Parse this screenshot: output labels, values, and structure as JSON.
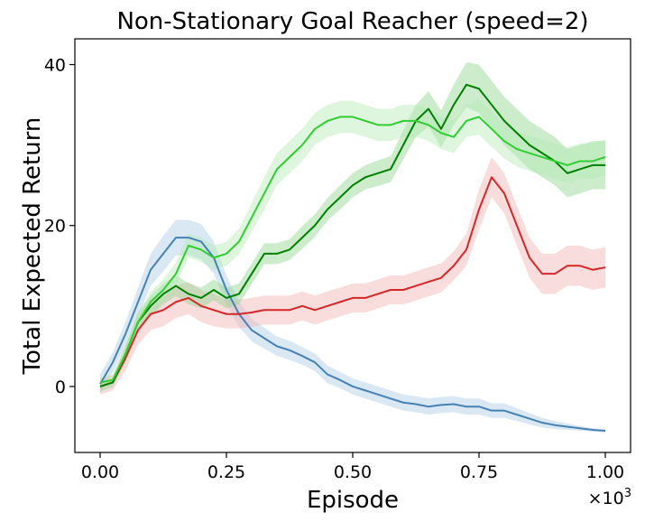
{
  "chart_data": {
    "type": "line",
    "title": "Non-Stationary Goal Reacher (speed=2)",
    "xlabel": "Episode",
    "ylabel": "Total Expected Return",
    "x_offset_label": "×10",
    "x_offset_exponent": "3",
    "xlim": [
      -0.05,
      1.05
    ],
    "ylim": [
      -8.2,
      43.2
    ],
    "xticks": [
      0.0,
      0.25,
      0.5,
      0.75,
      1.0
    ],
    "xtick_labels": [
      "0.00",
      "0.25",
      "0.50",
      "0.75",
      "1.00"
    ],
    "yticks": [
      0,
      20,
      40
    ],
    "ytick_labels": [
      "0",
      "20",
      "40"
    ],
    "grid": false,
    "legend": "none",
    "x": [
      0.0,
      0.025,
      0.05,
      0.075,
      0.1,
      0.125,
      0.15,
      0.175,
      0.2,
      0.225,
      0.25,
      0.275,
      0.3,
      0.325,
      0.35,
      0.375,
      0.4,
      0.425,
      0.45,
      0.475,
      0.5,
      0.525,
      0.55,
      0.575,
      0.6,
      0.625,
      0.65,
      0.675,
      0.7,
      0.725,
      0.75,
      0.775,
      0.8,
      0.825,
      0.85,
      0.875,
      0.9,
      0.925,
      0.95,
      0.975,
      1.0
    ],
    "series": [
      {
        "color": "#4682b4",
        "band_color": "#aecde6",
        "values": [
          0.3,
          3.0,
          6.5,
          10.5,
          14.5,
          16.5,
          18.5,
          18.5,
          18.0,
          16.0,
          12.0,
          9.0,
          7.0,
          6.0,
          5.0,
          4.5,
          3.8,
          3.0,
          1.5,
          0.8,
          0.0,
          -0.5,
          -1.0,
          -1.5,
          -2.0,
          -2.2,
          -2.5,
          -2.3,
          -2.2,
          -2.5,
          -2.5,
          -3.0,
          -3.0,
          -3.5,
          -4.0,
          -4.5,
          -4.8,
          -5.0,
          -5.2,
          -5.4,
          -5.5
        ],
        "band": [
          1.2,
          1.2,
          1.5,
          1.8,
          2.0,
          2.2,
          2.2,
          2.2,
          2.2,
          2.0,
          1.8,
          1.6,
          1.4,
          1.3,
          1.2,
          1.2,
          1.1,
          1.1,
          1.1,
          1.0,
          1.0,
          1.0,
          1.0,
          1.0,
          1.0,
          1.0,
          1.0,
          1.0,
          1.0,
          1.0,
          1.0,
          0.9,
          0.9,
          0.8,
          0.7,
          0.6,
          0.5,
          0.4,
          0.3,
          0.2,
          0.2
        ]
      },
      {
        "color": "#d62728",
        "band_color": "#f2b3b3",
        "values": [
          0.0,
          0.5,
          3.5,
          7.0,
          9.0,
          9.5,
          10.5,
          11.0,
          10.0,
          9.5,
          9.0,
          9.0,
          9.2,
          9.5,
          9.5,
          9.5,
          10.0,
          9.5,
          10.0,
          10.5,
          11.0,
          11.0,
          11.5,
          12.0,
          12.0,
          12.5,
          13.0,
          13.5,
          15.0,
          17.0,
          22.0,
          26.0,
          24.0,
          20.0,
          16.0,
          14.0,
          14.0,
          15.0,
          15.0,
          14.5,
          14.8
        ],
        "band": [
          1.0,
          1.0,
          1.5,
          1.8,
          2.0,
          2.0,
          2.0,
          2.0,
          2.0,
          2.0,
          1.8,
          1.8,
          1.8,
          1.8,
          1.8,
          1.8,
          1.8,
          1.8,
          1.8,
          1.8,
          1.8,
          1.8,
          1.8,
          1.8,
          1.8,
          1.8,
          1.8,
          1.8,
          1.8,
          2.0,
          2.5,
          2.5,
          2.5,
          2.5,
          2.5,
          2.5,
          2.5,
          2.5,
          2.5,
          2.5,
          2.5
        ]
      },
      {
        "color": "#008000",
        "band_color": "#8fd48f",
        "values": [
          0.0,
          0.5,
          4.0,
          8.0,
          10.0,
          11.5,
          12.5,
          11.5,
          11.0,
          12.0,
          11.0,
          11.5,
          14.0,
          16.5,
          16.5,
          17.0,
          18.5,
          20.0,
          22.0,
          23.5,
          25.0,
          26.0,
          26.5,
          27.0,
          30.0,
          33.0,
          34.5,
          32.0,
          35.0,
          37.5,
          37.0,
          35.0,
          33.0,
          31.5,
          30.0,
          29.0,
          28.0,
          26.5,
          27.0,
          27.5,
          27.5
        ],
        "band": [
          0.6,
          0.6,
          1.0,
          1.2,
          1.3,
          1.3,
          1.3,
          1.3,
          1.3,
          1.3,
          1.3,
          1.3,
          1.3,
          1.3,
          1.3,
          1.3,
          1.4,
          1.4,
          1.4,
          1.5,
          1.5,
          1.5,
          1.6,
          1.6,
          1.8,
          2.0,
          2.2,
          2.3,
          2.5,
          2.8,
          3.0,
          3.0,
          3.0,
          3.0,
          3.0,
          3.0,
          3.0,
          3.0,
          3.0,
          3.0,
          3.0
        ]
      },
      {
        "color": "#32cd32",
        "band_color": "#b4ecb4",
        "values": [
          0.5,
          0.8,
          4.0,
          8.0,
          10.5,
          12.0,
          14.0,
          17.5,
          17.0,
          16.0,
          16.5,
          18.0,
          21.0,
          24.0,
          27.0,
          28.5,
          30.0,
          32.0,
          33.0,
          33.5,
          33.5,
          33.0,
          32.5,
          32.5,
          33.0,
          33.0,
          32.5,
          31.5,
          31.0,
          33.0,
          33.5,
          32.0,
          30.5,
          29.5,
          29.0,
          28.5,
          28.0,
          27.5,
          28.0,
          28.0,
          28.5
        ],
        "band": [
          0.6,
          0.6,
          1.0,
          1.2,
          1.3,
          1.3,
          1.4,
          1.5,
          1.5,
          1.5,
          1.5,
          1.6,
          1.8,
          2.0,
          2.0,
          2.0,
          2.0,
          2.0,
          2.0,
          2.0,
          2.0,
          2.0,
          2.0,
          2.0,
          2.0,
          2.0,
          2.0,
          2.0,
          2.0,
          2.0,
          2.2,
          2.2,
          2.2,
          2.2,
          2.2,
          2.2,
          2.2,
          2.2,
          2.2,
          2.2,
          2.2
        ]
      }
    ]
  }
}
